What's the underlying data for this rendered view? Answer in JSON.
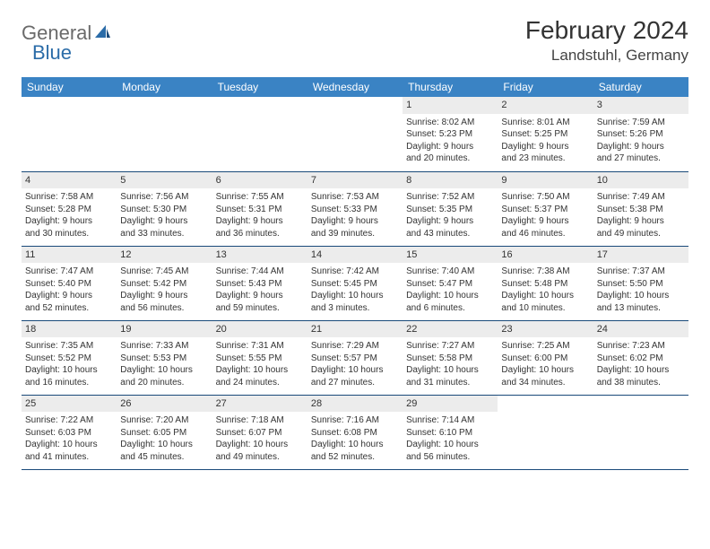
{
  "brand": {
    "part1": "General",
    "part2": "Blue"
  },
  "title": "February 2024",
  "location": "Landstuhl, Germany",
  "colors": {
    "header_bg": "#3a83c4",
    "daynum_bg": "#ececec",
    "row_border": "#1a4a7a",
    "logo_gray": "#6a6a6a",
    "logo_blue": "#2b6ca8"
  },
  "weekdays": [
    "Sunday",
    "Monday",
    "Tuesday",
    "Wednesday",
    "Thursday",
    "Friday",
    "Saturday"
  ],
  "weeks": [
    [
      null,
      null,
      null,
      null,
      {
        "n": "1",
        "sr": "Sunrise: 8:02 AM",
        "ss": "Sunset: 5:23 PM",
        "d1": "Daylight: 9 hours",
        "d2": "and 20 minutes."
      },
      {
        "n": "2",
        "sr": "Sunrise: 8:01 AM",
        "ss": "Sunset: 5:25 PM",
        "d1": "Daylight: 9 hours",
        "d2": "and 23 minutes."
      },
      {
        "n": "3",
        "sr": "Sunrise: 7:59 AM",
        "ss": "Sunset: 5:26 PM",
        "d1": "Daylight: 9 hours",
        "d2": "and 27 minutes."
      }
    ],
    [
      {
        "n": "4",
        "sr": "Sunrise: 7:58 AM",
        "ss": "Sunset: 5:28 PM",
        "d1": "Daylight: 9 hours",
        "d2": "and 30 minutes."
      },
      {
        "n": "5",
        "sr": "Sunrise: 7:56 AM",
        "ss": "Sunset: 5:30 PM",
        "d1": "Daylight: 9 hours",
        "d2": "and 33 minutes."
      },
      {
        "n": "6",
        "sr": "Sunrise: 7:55 AM",
        "ss": "Sunset: 5:31 PM",
        "d1": "Daylight: 9 hours",
        "d2": "and 36 minutes."
      },
      {
        "n": "7",
        "sr": "Sunrise: 7:53 AM",
        "ss": "Sunset: 5:33 PM",
        "d1": "Daylight: 9 hours",
        "d2": "and 39 minutes."
      },
      {
        "n": "8",
        "sr": "Sunrise: 7:52 AM",
        "ss": "Sunset: 5:35 PM",
        "d1": "Daylight: 9 hours",
        "d2": "and 43 minutes."
      },
      {
        "n": "9",
        "sr": "Sunrise: 7:50 AM",
        "ss": "Sunset: 5:37 PM",
        "d1": "Daylight: 9 hours",
        "d2": "and 46 minutes."
      },
      {
        "n": "10",
        "sr": "Sunrise: 7:49 AM",
        "ss": "Sunset: 5:38 PM",
        "d1": "Daylight: 9 hours",
        "d2": "and 49 minutes."
      }
    ],
    [
      {
        "n": "11",
        "sr": "Sunrise: 7:47 AM",
        "ss": "Sunset: 5:40 PM",
        "d1": "Daylight: 9 hours",
        "d2": "and 52 minutes."
      },
      {
        "n": "12",
        "sr": "Sunrise: 7:45 AM",
        "ss": "Sunset: 5:42 PM",
        "d1": "Daylight: 9 hours",
        "d2": "and 56 minutes."
      },
      {
        "n": "13",
        "sr": "Sunrise: 7:44 AM",
        "ss": "Sunset: 5:43 PM",
        "d1": "Daylight: 9 hours",
        "d2": "and 59 minutes."
      },
      {
        "n": "14",
        "sr": "Sunrise: 7:42 AM",
        "ss": "Sunset: 5:45 PM",
        "d1": "Daylight: 10 hours",
        "d2": "and 3 minutes."
      },
      {
        "n": "15",
        "sr": "Sunrise: 7:40 AM",
        "ss": "Sunset: 5:47 PM",
        "d1": "Daylight: 10 hours",
        "d2": "and 6 minutes."
      },
      {
        "n": "16",
        "sr": "Sunrise: 7:38 AM",
        "ss": "Sunset: 5:48 PM",
        "d1": "Daylight: 10 hours",
        "d2": "and 10 minutes."
      },
      {
        "n": "17",
        "sr": "Sunrise: 7:37 AM",
        "ss": "Sunset: 5:50 PM",
        "d1": "Daylight: 10 hours",
        "d2": "and 13 minutes."
      }
    ],
    [
      {
        "n": "18",
        "sr": "Sunrise: 7:35 AM",
        "ss": "Sunset: 5:52 PM",
        "d1": "Daylight: 10 hours",
        "d2": "and 16 minutes."
      },
      {
        "n": "19",
        "sr": "Sunrise: 7:33 AM",
        "ss": "Sunset: 5:53 PM",
        "d1": "Daylight: 10 hours",
        "d2": "and 20 minutes."
      },
      {
        "n": "20",
        "sr": "Sunrise: 7:31 AM",
        "ss": "Sunset: 5:55 PM",
        "d1": "Daylight: 10 hours",
        "d2": "and 24 minutes."
      },
      {
        "n": "21",
        "sr": "Sunrise: 7:29 AM",
        "ss": "Sunset: 5:57 PM",
        "d1": "Daylight: 10 hours",
        "d2": "and 27 minutes."
      },
      {
        "n": "22",
        "sr": "Sunrise: 7:27 AM",
        "ss": "Sunset: 5:58 PM",
        "d1": "Daylight: 10 hours",
        "d2": "and 31 minutes."
      },
      {
        "n": "23",
        "sr": "Sunrise: 7:25 AM",
        "ss": "Sunset: 6:00 PM",
        "d1": "Daylight: 10 hours",
        "d2": "and 34 minutes."
      },
      {
        "n": "24",
        "sr": "Sunrise: 7:23 AM",
        "ss": "Sunset: 6:02 PM",
        "d1": "Daylight: 10 hours",
        "d2": "and 38 minutes."
      }
    ],
    [
      {
        "n": "25",
        "sr": "Sunrise: 7:22 AM",
        "ss": "Sunset: 6:03 PM",
        "d1": "Daylight: 10 hours",
        "d2": "and 41 minutes."
      },
      {
        "n": "26",
        "sr": "Sunrise: 7:20 AM",
        "ss": "Sunset: 6:05 PM",
        "d1": "Daylight: 10 hours",
        "d2": "and 45 minutes."
      },
      {
        "n": "27",
        "sr": "Sunrise: 7:18 AM",
        "ss": "Sunset: 6:07 PM",
        "d1": "Daylight: 10 hours",
        "d2": "and 49 minutes."
      },
      {
        "n": "28",
        "sr": "Sunrise: 7:16 AM",
        "ss": "Sunset: 6:08 PM",
        "d1": "Daylight: 10 hours",
        "d2": "and 52 minutes."
      },
      {
        "n": "29",
        "sr": "Sunrise: 7:14 AM",
        "ss": "Sunset: 6:10 PM",
        "d1": "Daylight: 10 hours",
        "d2": "and 56 minutes."
      },
      null,
      null
    ]
  ]
}
